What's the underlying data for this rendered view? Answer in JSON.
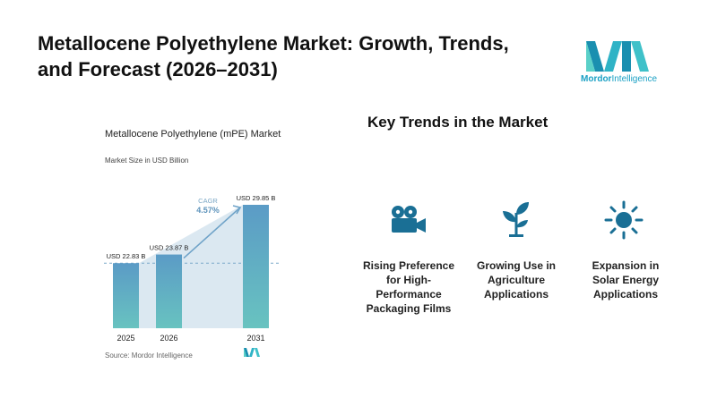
{
  "header": {
    "title": "Metallocene Polyethylene Market: Growth, Trends, and Forecast (2026–2031)"
  },
  "logo": {
    "word1": "Mordor",
    "word2": "Intelligence"
  },
  "chart_data": {
    "type": "bar",
    "title": "Metallocene Polyethylene (mPE) Market",
    "subtitle": "Market Size in USD Billion",
    "categories": [
      "2025",
      "2026",
      "2031"
    ],
    "values": [
      22.83,
      23.87,
      29.85
    ],
    "data_labels": [
      "USD 22.83 B",
      "USD 23.87 B",
      "USD 29.85 B"
    ],
    "annotation": {
      "label": "CAGR",
      "value": "4.57%"
    },
    "colors": {
      "bar_top": "#5b9bc6",
      "bar_bottom": "#68c3c0",
      "shade": "#dbe8f1",
      "dash": "#7aa9c9"
    },
    "grid": false,
    "source": "Source: Mordor Intelligence"
  },
  "key_trends": {
    "title": "Key Trends in the Market",
    "items": [
      {
        "icon": "film-camera-icon",
        "label": "Rising Preference for High-Performance Packaging Films"
      },
      {
        "icon": "sprout-icon",
        "label": "Growing Use in Agriculture Applications"
      },
      {
        "icon": "sun-icon",
        "label": "Expansion in Solar Energy Applications"
      }
    ],
    "icon_color": "#1a6f95"
  }
}
